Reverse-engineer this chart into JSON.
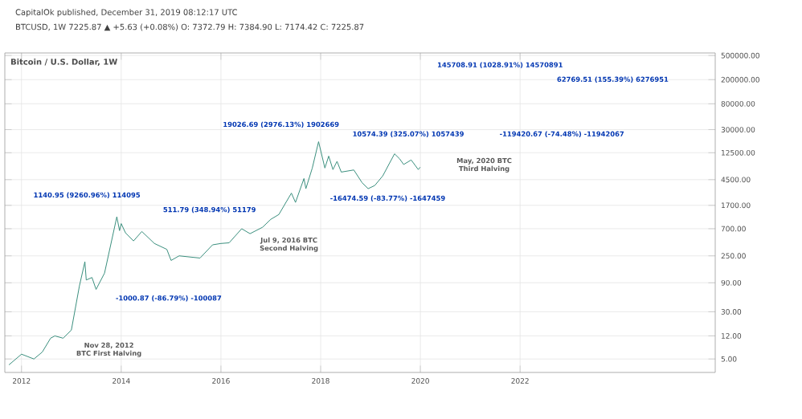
{
  "chart_data": {
    "type": "line",
    "title": "Bitcoin / U.S. Dollar, 1W",
    "subtitle": "CapitalOk published, December 31, 2019 08:12:17 UTC",
    "annotations": [
      "BTCUSD, 1W 7225.87 ▲ +5.63 (+0.08%) O: 7372.79 H: 7384.90 L: 7174.42 C: 7225.87",
      "1140.95 (9260.96%) 114095",
      "-1000.87 (-86.79%) -100087",
      "511.79 (348.94%) 51179",
      "19026.69 (2976.13%) 1902669",
      "-16474.59 (-83.77%) -1647459",
      "10574.39 (325.07%) 1057439",
      "145708.91 (1028.91%) 14570891",
      "-119420.67 (-74.48%) -11942067",
      "62769.51 (155.39%) 6276951",
      {
        "text": "Nov 28, 2012 BTC First Halving",
        "x": "2012-11-28",
        "y": 12
      },
      {
        "text": "Jul 9, 2016 BTC Second Halving",
        "x": "2016-07-09",
        "y": 650
      },
      "May, 2020 BTC Third Halving"
    ],
    "x": [
      "2011-10",
      "2012-01",
      "2012-04",
      "2012-06",
      "2012-08",
      "2012-09",
      "2012-11",
      "2013-01",
      "2013-03",
      "2013-04-10",
      "2013-04-20",
      "2013-06",
      "2013-07",
      "2013-09",
      "2013-11-30",
      "2013-12-20",
      "2014-01",
      "2014-02",
      "2014-04",
      "2014-06",
      "2014-09",
      "2014-12",
      "2015-01",
      "2015-03",
      "2015-08",
      "2015-11",
      "2016-01",
      "2016-03",
      "2016-06",
      "2016-08",
      "2016-11",
      "2017-01",
      "2017-03",
      "2017-06",
      "2017-07",
      "2017-09",
      "2017-09-15",
      "2017-11",
      "2017-12-17",
      "2018-02",
      "2018-03",
      "2018-04",
      "2018-05",
      "2018-06",
      "2018-09",
      "2018-11",
      "2018-12-15",
      "2019-02",
      "2019-04",
      "2019-06-26",
      "2019-08",
      "2019-09",
      "2019-10-26",
      "2019-12-17",
      "2019-12-31"
    ],
    "series": [
      {
        "color": "#3a8f7d",
        "values": [
          4,
          6,
          5,
          6.5,
          11,
          12,
          11,
          15,
          80,
          200,
          100,
          110,
          70,
          130,
          1100,
          650,
          850,
          600,
          440,
          630,
          400,
          320,
          210,
          250,
          230,
          380,
          400,
          410,
          700,
          580,
          740,
          1000,
          1200,
          2700,
          1900,
          4700,
          3200,
          7000,
          19000,
          7000,
          11000,
          6600,
          9000,
          6000,
          6500,
          4000,
          3200,
          3600,
          5200,
          12000,
          10000,
          8000,
          9500,
          6600,
          7225.87
        ]
      }
    ],
    "log": "y",
    "grid": true,
    "xlim": [
      "2011-09",
      "2025-12"
    ],
    "xticks": [
      {
        "value": "2012",
        "label": "2012"
      },
      {
        "value": "2014",
        "label": "2014"
      },
      {
        "value": "2016",
        "label": "2016"
      },
      {
        "value": "2018",
        "label": "2018"
      },
      {
        "value": "2020",
        "label": "2020"
      },
      {
        "value": "2022",
        "label": "2022"
      }
    ],
    "ylim": [
      3,
      550000
    ],
    "yticks": [
      {
        "value": 5,
        "label": "5.00"
      },
      {
        "value": 12,
        "label": "12.00"
      },
      {
        "value": 30,
        "label": "30.00"
      },
      {
        "value": 90,
        "label": "90.00"
      },
      {
        "value": 250,
        "label": "250.00"
      },
      {
        "value": 700,
        "label": "700.00"
      },
      {
        "value": 1700,
        "label": "1700.00"
      },
      {
        "value": 4500,
        "label": "4500.00"
      },
      {
        "value": 12500,
        "label": "12500.00"
      },
      {
        "value": 30000,
        "label": "30000.00"
      },
      {
        "value": 80000,
        "label": "80000.00"
      },
      {
        "value": 200000,
        "label": "200000.00"
      },
      {
        "value": 500000,
        "label": "500000.00"
      }
    ]
  }
}
